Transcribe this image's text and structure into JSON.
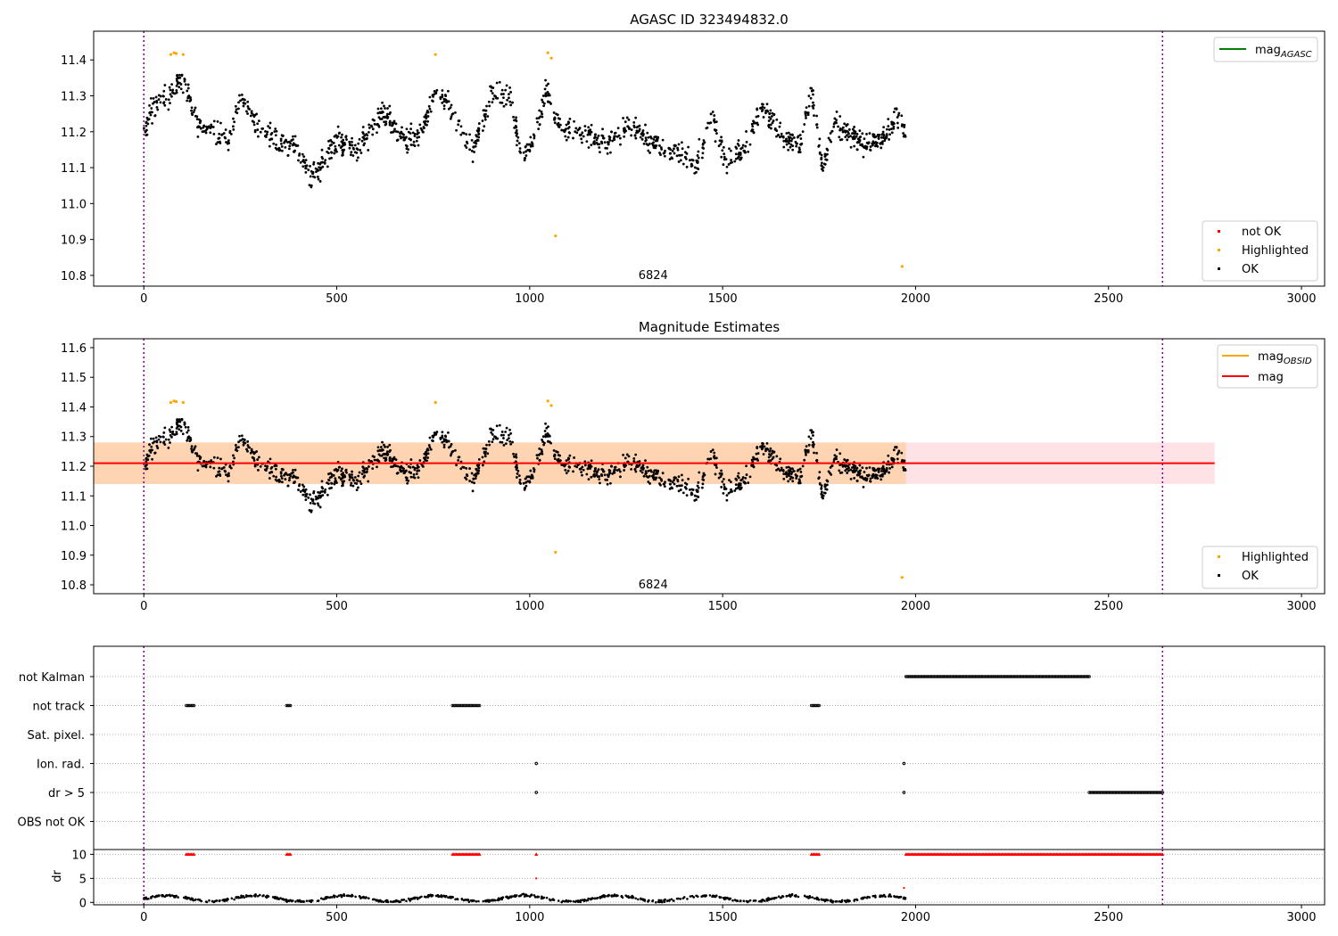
{
  "chart_data": [
    {
      "type": "scatter",
      "title": "AGASC ID 323494832.0",
      "xlim": [
        -130,
        3060
      ],
      "ylim": [
        10.77,
        11.48
      ],
      "xticks": [
        0,
        500,
        1000,
        1500,
        2000,
        2500,
        3000
      ],
      "yticks": [
        10.8,
        10.9,
        11.0,
        11.1,
        11.2,
        11.3,
        11.4
      ],
      "grid": false,
      "vlines": [
        0,
        2640
      ],
      "annotation": {
        "text": "6824",
        "x": 1320,
        "y": 10.8
      },
      "legend_lines": {
        "placement": "top-right",
        "entries": [
          {
            "name": "mag",
            "sub": "AGASC",
            "color": "#008000"
          }
        ]
      },
      "legend_points": {
        "placement": "bottom-right",
        "entries": [
          {
            "name": "not OK",
            "color": "#ff0000"
          },
          {
            "name": "Highlighted",
            "color": "#ffa500"
          },
          {
            "name": "OK",
            "color": "#000000"
          }
        ]
      },
      "highlighted_points": [
        [
          70,
          11.415
        ],
        [
          78,
          11.42
        ],
        [
          84,
          11.418
        ],
        [
          102,
          11.415
        ],
        [
          756,
          11.415
        ],
        [
          1047,
          11.42
        ],
        [
          1056,
          11.405
        ],
        [
          1067,
          10.91
        ],
        [
          1965,
          10.825
        ]
      ],
      "ok_profile": [
        [
          0,
          11.2
        ],
        [
          20,
          11.26
        ],
        [
          40,
          11.28
        ],
        [
          70,
          11.3
        ],
        [
          90,
          11.34
        ],
        [
          110,
          11.33
        ],
        [
          140,
          11.22
        ],
        [
          180,
          11.2
        ],
        [
          220,
          11.18
        ],
        [
          250,
          11.3
        ],
        [
          300,
          11.2
        ],
        [
          350,
          11.17
        ],
        [
          400,
          11.15
        ],
        [
          430,
          11.07
        ],
        [
          470,
          11.12
        ],
        [
          500,
          11.18
        ],
        [
          560,
          11.15
        ],
        [
          620,
          11.26
        ],
        [
          680,
          11.17
        ],
        [
          720,
          11.2
        ],
        [
          760,
          11.33
        ],
        [
          800,
          11.25
        ],
        [
          850,
          11.14
        ],
        [
          900,
          11.3
        ],
        [
          950,
          11.3
        ],
        [
          980,
          11.12
        ],
        [
          1010,
          11.18
        ],
        [
          1045,
          11.32
        ],
        [
          1070,
          11.22
        ],
        [
          1120,
          11.2
        ],
        [
          1200,
          11.17
        ],
        [
          1260,
          11.22
        ],
        [
          1300,
          11.18
        ],
        [
          1350,
          11.15
        ],
        [
          1400,
          11.14
        ],
        [
          1430,
          11.1
        ],
        [
          1470,
          11.25
        ],
        [
          1510,
          11.12
        ],
        [
          1560,
          11.16
        ],
        [
          1600,
          11.27
        ],
        [
          1650,
          11.2
        ],
        [
          1700,
          11.16
        ],
        [
          1730,
          11.32
        ],
        [
          1760,
          11.1
        ],
        [
          1790,
          11.23
        ],
        [
          1820,
          11.2
        ],
        [
          1860,
          11.17
        ],
        [
          1920,
          11.18
        ],
        [
          1950,
          11.24
        ],
        [
          1975,
          11.2
        ]
      ],
      "ok_x_range": [
        0,
        1975
      ]
    },
    {
      "type": "scatter",
      "title": "Magnitude Estimates",
      "xlim": [
        -130,
        3060
      ],
      "ylim": [
        10.77,
        11.63
      ],
      "xticks": [
        0,
        500,
        1000,
        1500,
        2000,
        2500,
        3000
      ],
      "yticks": [
        10.8,
        10.9,
        11.0,
        11.1,
        11.2,
        11.3,
        11.4,
        11.5,
        11.6
      ],
      "grid": false,
      "vlines": [
        0,
        2640
      ],
      "annotation": {
        "text": "6824",
        "x": 1320,
        "y": 10.8
      },
      "mag_line": {
        "y": 11.21,
        "color": "#ff0000"
      },
      "mag_band": {
        "y0": 11.14,
        "y1": 11.28,
        "x0": -130,
        "x1": 2775,
        "color": "#ffb6c1"
      },
      "obsid_band": {
        "y0": 11.14,
        "y1": 11.28,
        "x0": -130,
        "x1": 1975,
        "color": "#ffa500"
      },
      "legend_lines": {
        "placement": "top-right",
        "entries": [
          {
            "name": "mag",
            "sub": "OBSID",
            "color": "#ffa500"
          },
          {
            "name": "mag",
            "sub": "",
            "color": "#ff0000"
          }
        ]
      },
      "legend_points": {
        "placement": "bottom-right",
        "entries": [
          {
            "name": "Highlighted",
            "color": "#ffa500"
          },
          {
            "name": "OK",
            "color": "#000000"
          }
        ]
      }
    },
    {
      "type": "scatter",
      "title": "",
      "xlim": [
        -130,
        3060
      ],
      "xticks": [
        0,
        500,
        1000,
        1500,
        2000,
        2500,
        3000
      ],
      "categories": [
        "not Kalman",
        "not track",
        "Sat. pixel.",
        "Ion. rad.",
        "dr > 5",
        "OBS not OK"
      ],
      "flag_ranges": {
        "not Kalman": [
          [
            1975,
            2450
          ]
        ],
        "not track": [
          [
            110,
            130
          ],
          [
            370,
            380
          ],
          [
            800,
            870
          ],
          [
            1730,
            1750
          ]
        ],
        "Sat. pixel.": [],
        "Ion. rad.": [
          [
            1017,
            1017
          ],
          [
            1970,
            1970
          ]
        ],
        "dr > 5": [
          [
            1017,
            1017
          ],
          [
            1970,
            1970
          ],
          [
            2450,
            2640
          ]
        ],
        "OBS not OK": []
      },
      "vlines": [
        0,
        2640
      ]
    },
    {
      "type": "scatter",
      "title": "",
      "ylabel": "dr",
      "xlim": [
        -130,
        3060
      ],
      "ylim": [
        -0.5,
        11
      ],
      "xticks": [
        0,
        500,
        1000,
        1500,
        2000,
        2500,
        3000
      ],
      "yticks": [
        0,
        5,
        10
      ],
      "vlines": [
        0,
        2640
      ],
      "clipped_ranges": [
        [
          110,
          130
        ],
        [
          370,
          380
        ],
        [
          800,
          870
        ],
        [
          1017,
          1017
        ],
        [
          1730,
          1750
        ],
        [
          1975,
          2640
        ]
      ],
      "outliers": [
        [
          1017,
          5
        ],
        [
          1970,
          3
        ]
      ],
      "dr_range": [
        0,
        1975
      ]
    }
  ]
}
